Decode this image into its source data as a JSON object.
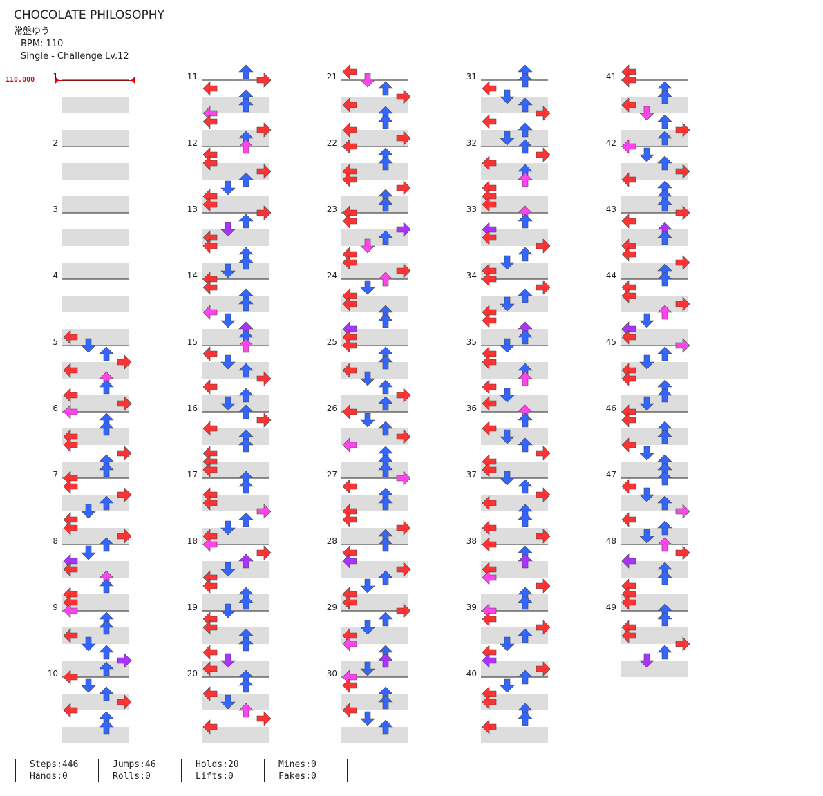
{
  "song": {
    "title": "CHOCOLATE PHILOSOPHY",
    "artist": "常盤ゆう",
    "bpm_label": "BPM: 110",
    "difficulty_label": "Single - Challenge  Lv.12"
  },
  "bpm_marker": "110.000",
  "measure_labels": [
    "1",
    "2",
    "3",
    "4",
    "5",
    "6",
    "7",
    "8",
    "9",
    "10",
    "11",
    "12",
    "13",
    "14",
    "15",
    "16",
    "17",
    "18",
    "19",
    "20",
    "21",
    "22",
    "23",
    "24",
    "25",
    "26",
    "27",
    "28",
    "29",
    "30",
    "31",
    "32",
    "33",
    "34",
    "35",
    "36",
    "37",
    "38",
    "39",
    "40",
    "41",
    "42",
    "43",
    "44",
    "45",
    "46",
    "47",
    "48",
    "49"
  ],
  "colors": {
    "red_arrow": "#ff3333",
    "blue_arrow": "#3366ff",
    "magenta_arrow": "#ff44ee",
    "purple_arrow": "#aa33ff",
    "hold_green": "#88dd88",
    "band_gray": "#dddddd"
  },
  "stats": {
    "steps": "Steps:446",
    "hands": "Hands:0",
    "jumps": "Jumps:46",
    "rolls": "Rolls:0",
    "holds": "Holds:20",
    "lifts": "Lifts:0",
    "mines": "Mines:0",
    "fakes": "Fakes:0"
  },
  "notes_pattern": [
    [
      0,
      3
    ],
    [
      1,
      2
    ],
    [
      2,
      1
    ],
    [
      3,
      0
    ],
    [
      0,
      2
    ],
    [
      1,
      3
    ],
    [
      2,
      0
    ],
    [
      3,
      1
    ],
    [
      0,
      1
    ],
    [
      1,
      0
    ],
    [
      2,
      3
    ],
    [
      3,
      2
    ],
    [
      0,
      0
    ],
    [
      1,
      1
    ],
    [
      2,
      2
    ],
    [
      3,
      3
    ]
  ]
}
